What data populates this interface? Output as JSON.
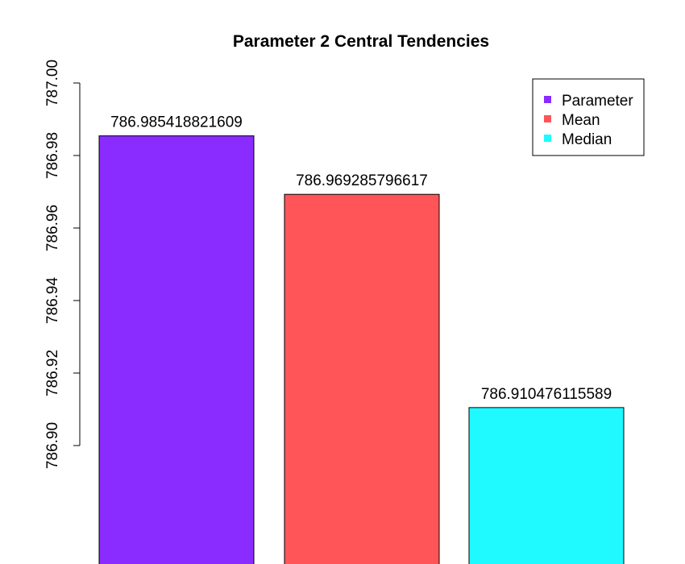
{
  "chart_data": {
    "type": "bar",
    "title": "Parameter 2 Central Tendencies",
    "xlabel": "",
    "ylabel": "",
    "categories": [
      "Parameter",
      "Mean",
      "Median"
    ],
    "values": [
      786.985418821609,
      786.969285796617,
      786.910476115589
    ],
    "data_labels": [
      "786.985418821609",
      "786.969285796617",
      "786.910476115589"
    ],
    "colors": [
      "#8A2BFF",
      "#FF5559",
      "#1EFAFF"
    ],
    "ylim": [
      786.9,
      787.0
    ],
    "yticks": [
      786.9,
      786.92,
      786.94,
      786.96,
      786.98,
      787.0
    ],
    "ytick_labels": [
      "786.90",
      "786.92",
      "786.94",
      "786.96",
      "786.98",
      "787.00"
    ],
    "legend": {
      "position": "top-right",
      "entries": [
        "Parameter",
        "Mean",
        "Median"
      ]
    },
    "grid": false
  }
}
